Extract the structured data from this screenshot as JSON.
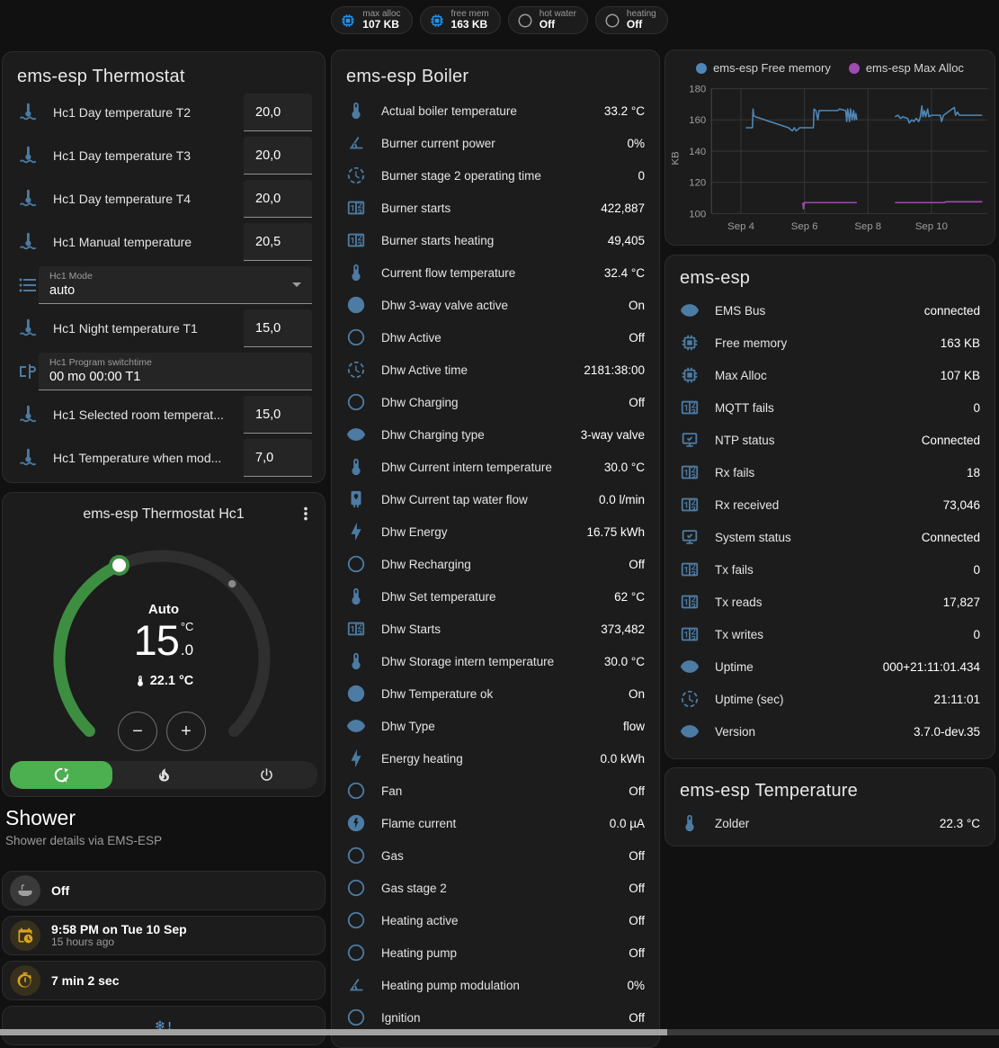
{
  "colors": {
    "icon_blue": "#4c7ba3",
    "badge_blue": "#2196f3",
    "amber": "#d9a41b",
    "green": "#4caf50",
    "arc_green": "#3e8e42",
    "snowflake_blue": "#5b9bd5"
  },
  "badges": [
    {
      "label": "max alloc",
      "value": "107 KB",
      "icon": "chip",
      "icon_color": "#2196f3"
    },
    {
      "label": "free mem",
      "value": "163 KB",
      "icon": "chip",
      "icon_color": "#2196f3"
    },
    {
      "label": "hot water",
      "value": "Off",
      "icon": "circle-outline",
      "icon_color": "#9e9e9e"
    },
    {
      "label": "heating",
      "value": "Off",
      "icon": "circle-outline",
      "icon_color": "#9e9e9e"
    }
  ],
  "thermostat_card": {
    "title": "ems-esp Thermostat",
    "rows": [
      {
        "type": "number",
        "icon": "coolant-thermometer",
        "label": "Hc1 Day temperature T2",
        "value": "20,0"
      },
      {
        "type": "number",
        "icon": "coolant-thermometer",
        "label": "Hc1 Day temperature T3",
        "value": "20,0"
      },
      {
        "type": "number",
        "icon": "coolant-thermometer",
        "label": "Hc1 Day temperature T4",
        "value": "20,0"
      },
      {
        "type": "number",
        "icon": "coolant-thermometer",
        "label": "Hc1 Manual temperature",
        "value": "20,5"
      },
      {
        "type": "select",
        "icon": "format-list",
        "label": "Hc1 Mode",
        "value": "auto"
      },
      {
        "type": "number",
        "icon": "coolant-thermometer",
        "label": "Hc1 Night temperature T1",
        "value": "15,0"
      },
      {
        "type": "text",
        "icon": "switchtime",
        "label": "Hc1 Program switchtime",
        "value": "00 mo 00:00 T1"
      },
      {
        "type": "number",
        "icon": "coolant-thermometer",
        "label": "Hc1 Selected room temperat...",
        "value": "15,0"
      },
      {
        "type": "number",
        "icon": "coolant-thermometer",
        "label": "Hc1 Temperature when mod...",
        "value": "7,0"
      }
    ]
  },
  "dial_card": {
    "title": "ems-esp Thermostat Hc1",
    "mode_label": "Auto",
    "target_int": "15",
    "target_unit": "°C",
    "target_dec": ".0",
    "current": "22.1 °C",
    "arc": {
      "start_deg": -135,
      "end_deg": 135,
      "value_deg": -24.6,
      "marker_deg": 43.3
    },
    "modes": [
      {
        "name": "auto",
        "icon": "thermostat-auto",
        "active": true
      },
      {
        "name": "heat",
        "icon": "fire",
        "active": false
      },
      {
        "name": "off",
        "icon": "power",
        "active": false
      }
    ]
  },
  "shower": {
    "title": "Shower",
    "subtitle": "Shower details via EMS-ESP",
    "items": [
      {
        "icon": "bathtub",
        "icon_color": "#9e9e9e",
        "circle": "#3a3a3a",
        "primary": "Off",
        "secondary": ""
      },
      {
        "icon": "calendar-clock",
        "icon_color": "#d9a41b",
        "circle": "#37301d",
        "primary": "9:58 PM on Tue 10 Sep",
        "secondary": "15 hours ago"
      },
      {
        "icon": "timer",
        "icon_color": "#d9a41b",
        "circle": "#37301d",
        "primary": "7 min 2 sec",
        "secondary": ""
      },
      {
        "icon": "snowflake-alert",
        "icon_color": "#5b9bd5",
        "circle": "",
        "primary": "",
        "secondary": ""
      }
    ]
  },
  "boiler_card": {
    "title": "ems-esp Boiler",
    "rows": [
      {
        "icon": "thermometer",
        "name": "Actual boiler temperature",
        "value": "33.2 °C"
      },
      {
        "icon": "angle-acute",
        "name": "Burner current power",
        "value": "0%"
      },
      {
        "icon": "progress-clock",
        "name": "Burner stage 2 operating time",
        "value": "0"
      },
      {
        "icon": "counter",
        "name": "Burner starts",
        "value": "422,887"
      },
      {
        "icon": "counter",
        "name": "Burner starts heating",
        "value": "49,405"
      },
      {
        "icon": "thermometer",
        "name": "Current flow temperature",
        "value": "32.4 °C"
      },
      {
        "icon": "check-circle",
        "name": "Dhw 3-way valve active",
        "value": "On"
      },
      {
        "icon": "circle-outline",
        "name": "Dhw Active",
        "value": "Off"
      },
      {
        "icon": "progress-clock",
        "name": "Dhw Active time",
        "value": "2181:38:00"
      },
      {
        "icon": "circle-outline",
        "name": "Dhw Charging",
        "value": "Off"
      },
      {
        "icon": "eye",
        "name": "Dhw Charging type",
        "value": "3-way valve"
      },
      {
        "icon": "thermometer",
        "name": "Dhw Current intern temperature",
        "value": "30.0 °C"
      },
      {
        "icon": "water-heater",
        "name": "Dhw Current tap water flow",
        "value": "0.0 l/min"
      },
      {
        "icon": "lightning",
        "name": "Dhw Energy",
        "value": "16.75 kWh"
      },
      {
        "icon": "circle-outline",
        "name": "Dhw Recharging",
        "value": "Off"
      },
      {
        "icon": "thermometer",
        "name": "Dhw Set temperature",
        "value": "62 °C"
      },
      {
        "icon": "counter",
        "name": "Dhw Starts",
        "value": "373,482"
      },
      {
        "icon": "thermometer",
        "name": "Dhw Storage intern temperature",
        "value": "30.0 °C"
      },
      {
        "icon": "check-circle",
        "name": "Dhw Temperature ok",
        "value": "On"
      },
      {
        "icon": "eye",
        "name": "Dhw Type",
        "value": "flow"
      },
      {
        "icon": "lightning",
        "name": "Energy heating",
        "value": "0.0 kWh"
      },
      {
        "icon": "circle-outline",
        "name": "Fan",
        "value": "Off"
      },
      {
        "icon": "flash-circle",
        "name": "Flame current",
        "value": "0.0 µA"
      },
      {
        "icon": "circle-outline",
        "name": "Gas",
        "value": "Off"
      },
      {
        "icon": "circle-outline",
        "name": "Gas stage 2",
        "value": "Off"
      },
      {
        "icon": "circle-outline",
        "name": "Heating active",
        "value": "Off"
      },
      {
        "icon": "circle-outline",
        "name": "Heating pump",
        "value": "Off"
      },
      {
        "icon": "angle-acute",
        "name": "Heating pump modulation",
        "value": "0%"
      },
      {
        "icon": "circle-outline",
        "name": "Ignition",
        "value": "Off"
      }
    ]
  },
  "chart_data": {
    "type": "line",
    "ylabel": "KB",
    "y_ticks": [
      180,
      160,
      140,
      120,
      100
    ],
    "ylim": [
      100,
      180
    ],
    "x_ticks": [
      {
        "label": "Sep 4",
        "x": 4
      },
      {
        "label": "Sep 6",
        "x": 6
      },
      {
        "label": "Sep 8",
        "x": 8
      },
      {
        "label": "Sep 10",
        "x": 10
      }
    ],
    "xlim": [
      3.07,
      11.77
    ],
    "legend_position": "top",
    "grid": true,
    "series": [
      {
        "name": "ems-esp Free memory",
        "color": "#4e87b6",
        "segments": [
          [
            [
              4.15,
              155
            ],
            [
              4.36,
              155
            ],
            [
              4.38,
              167
            ],
            [
              4.4,
              163
            ],
            [
              4.45,
              162
            ],
            [
              4.62,
              161
            ],
            [
              4.75,
              160
            ],
            [
              4.9,
              159
            ],
            [
              5.05,
              158
            ],
            [
              5.2,
              157
            ],
            [
              5.35,
              156
            ],
            [
              5.5,
              155
            ],
            [
              5.55,
              154
            ],
            [
              5.62,
              153
            ],
            [
              5.68,
              155
            ],
            [
              5.74,
              153
            ],
            [
              5.8,
              154
            ],
            [
              5.85,
              155
            ],
            [
              6.28,
              155
            ],
            [
              6.3,
              167
            ],
            [
              6.36,
              166
            ],
            [
              6.42,
              160
            ],
            [
              6.46,
              166
            ],
            [
              6.52,
              166
            ],
            [
              7.05,
              166
            ],
            [
              7.1,
              167
            ],
            [
              7.3,
              166
            ],
            [
              7.33,
              159
            ],
            [
              7.36,
              167
            ],
            [
              7.42,
              159
            ],
            [
              7.45,
              167
            ],
            [
              7.5,
              160
            ],
            [
              7.55,
              166
            ],
            [
              7.58,
              160
            ],
            [
              7.62,
              164
            ],
            [
              7.65,
              160
            ]
          ],
          [
            [
              8.85,
              162
            ],
            [
              8.95,
              163
            ],
            [
              9.02,
              161
            ],
            [
              9.1,
              162
            ],
            [
              9.25,
              161
            ],
            [
              9.3,
              158
            ],
            [
              9.38,
              160
            ],
            [
              9.45,
              159
            ],
            [
              9.52,
              161
            ],
            [
              9.6,
              159
            ],
            [
              9.65,
              162
            ],
            [
              9.7,
              169
            ],
            [
              9.73,
              162
            ],
            [
              9.78,
              166
            ],
            [
              9.82,
              162
            ],
            [
              9.88,
              167
            ],
            [
              9.92,
              162
            ],
            [
              10.0,
              163
            ],
            [
              10.28,
              163
            ],
            [
              10.32,
              159
            ],
            [
              10.38,
              163
            ],
            [
              10.72,
              168
            ],
            [
              10.76,
              163
            ],
            [
              10.82,
              165
            ],
            [
              10.88,
              163
            ],
            [
              11.6,
              163
            ]
          ]
        ]
      },
      {
        "name": "ems-esp Max Alloc",
        "color": "#a04bb0",
        "segments": [
          [
            [
              5.95,
              107
            ],
            [
              5.97,
              103
            ],
            [
              6.0,
              107
            ],
            [
              7.65,
              107
            ]
          ],
          [
            [
              8.85,
              107
            ],
            [
              10.4,
              107
            ],
            [
              10.45,
              107.5
            ],
            [
              11.6,
              107.5
            ]
          ]
        ]
      }
    ]
  },
  "esp_card": {
    "title": "ems-esp",
    "rows": [
      {
        "icon": "eye",
        "name": "EMS Bus",
        "value": "connected"
      },
      {
        "icon": "chip",
        "name": "Free memory",
        "value": "163 KB"
      },
      {
        "icon": "chip",
        "name": "Max Alloc",
        "value": "107 KB"
      },
      {
        "icon": "counter",
        "name": "MQTT fails",
        "value": "0"
      },
      {
        "icon": "monitor-check",
        "name": "NTP status",
        "value": "Connected"
      },
      {
        "icon": "counter",
        "name": "Rx fails",
        "value": "18"
      },
      {
        "icon": "counter",
        "name": "Rx received",
        "value": "73,046"
      },
      {
        "icon": "monitor-check",
        "name": "System status",
        "value": "Connected"
      },
      {
        "icon": "counter",
        "name": "Tx fails",
        "value": "0"
      },
      {
        "icon": "counter",
        "name": "Tx reads",
        "value": "17,827"
      },
      {
        "icon": "counter",
        "name": "Tx writes",
        "value": "0"
      },
      {
        "icon": "eye",
        "name": "Uptime",
        "value": "000+21:11:01.434"
      },
      {
        "icon": "progress-clock",
        "name": "Uptime (sec)",
        "value": "21:11:01"
      },
      {
        "icon": "eye",
        "name": "Version",
        "value": "3.7.0-dev.35"
      }
    ]
  },
  "temperature_card": {
    "title": "ems-esp Temperature",
    "rows": [
      {
        "icon": "thermometer",
        "name": "Zolder",
        "value": "22.3 °C"
      }
    ]
  }
}
